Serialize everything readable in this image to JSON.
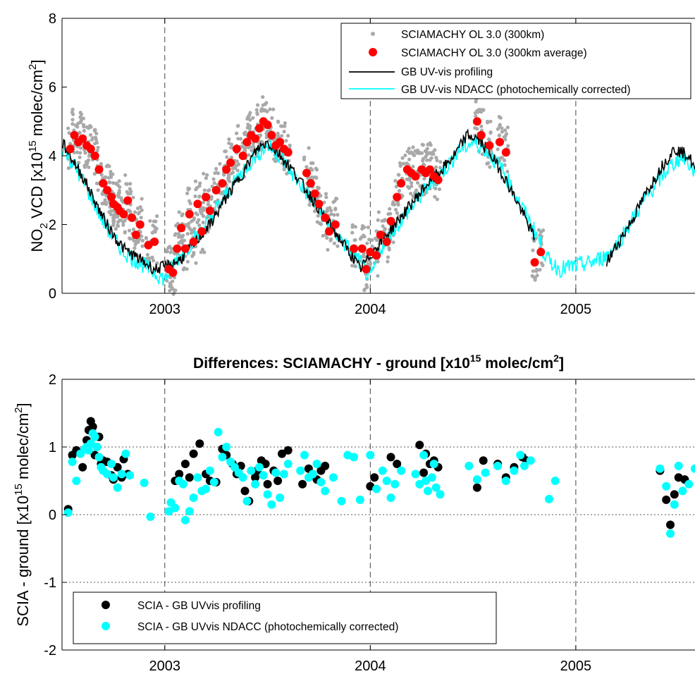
{
  "chart_data": [
    {
      "type": "scatter",
      "title": "",
      "ylabel": "NO2 VCD [x10^15 molec/cm^2]",
      "ylabel_parts": {
        "a": "NO",
        "b": "2",
        "c": " VCD [x10",
        "d": "15",
        "e": " molec/cm",
        "f": "2",
        "g": "]"
      },
      "xlim": [
        2002.5,
        2005.58
      ],
      "ylim": [
        0,
        8
      ],
      "yticks": [
        0,
        2,
        4,
        6,
        8
      ],
      "xticks": [
        2003,
        2004,
        2005
      ],
      "xtick_labels": [
        "2003",
        "2004",
        "2005"
      ],
      "legend_position": "top-right",
      "legend": [
        {
          "label": "SCIAMACHY OL 3.0 (300km)",
          "color": "#a9a9a9",
          "marker": "dot"
        },
        {
          "label": "SCIAMACHY OL 3.0 (300km average)",
          "color": "#ff0000",
          "marker": "circle"
        },
        {
          "label": "GB UV-vis profiling",
          "color": "#000000",
          "marker": "line"
        },
        {
          "label": "GB UV-vis NDACC (photochemically corrected)",
          "color": "#00ffff",
          "marker": "line"
        }
      ],
      "series_avg": {
        "x": [
          2002.54,
          2002.56,
          2002.58,
          2002.6,
          2002.62,
          2002.64,
          2002.66,
          2002.68,
          2002.7,
          2002.72,
          2002.74,
          2002.75,
          2002.77,
          2002.78,
          2002.8,
          2002.82,
          2002.84,
          2002.86,
          2002.88,
          2002.92,
          2002.95,
          2003.02,
          2003.04,
          2003.06,
          2003.08,
          2003.1,
          2003.12,
          2003.14,
          2003.16,
          2003.18,
          2003.2,
          2003.22,
          2003.25,
          2003.28,
          2003.3,
          2003.32,
          2003.35,
          2003.38,
          2003.4,
          2003.42,
          2003.44,
          2003.46,
          2003.48,
          2003.5,
          2003.52,
          2003.54,
          2003.56,
          2003.58,
          2003.6,
          2003.69,
          2003.71,
          2003.73,
          2003.75,
          2003.78,
          2003.8,
          2003.83,
          2003.92,
          2003.96,
          2003.98,
          2004.0,
          2004.03,
          2004.05,
          2004.08,
          2004.1,
          2004.13,
          2004.15,
          2004.18,
          2004.2,
          2004.22,
          2004.25,
          2004.27,
          2004.29,
          2004.31,
          2004.33,
          2004.52,
          2004.54,
          2004.58,
          2004.63,
          2004.66,
          2004.8,
          2004.83
        ],
        "y": [
          4.2,
          4.6,
          4.4,
          4.5,
          4.3,
          4.2,
          4.0,
          3.6,
          3.2,
          3.0,
          2.8,
          2.6,
          2.5,
          2.4,
          2.3,
          2.7,
          2.2,
          1.7,
          2.0,
          1.4,
          1.5,
          0.7,
          0.6,
          1.3,
          1.9,
          1.3,
          2.3,
          1.5,
          2.6,
          1.8,
          2.8,
          2.4,
          3.0,
          3.2,
          3.6,
          3.8,
          4.2,
          4.0,
          4.4,
          4.6,
          4.5,
          4.8,
          5.0,
          4.9,
          4.6,
          4.3,
          4.4,
          4.2,
          4.1,
          3.5,
          3.2,
          2.9,
          2.6,
          2.2,
          1.8,
          2.0,
          1.3,
          1.3,
          0.7,
          1.2,
          1.1,
          1.7,
          1.5,
          2.1,
          2.8,
          3.2,
          3.6,
          3.5,
          3.4,
          3.6,
          3.5,
          3.6,
          3.4,
          3.3,
          5.0,
          4.6,
          4.3,
          4.4,
          4.1,
          0.9,
          1.2
        ]
      },
      "series_gray_note": "dense individual overpasses around the averages",
      "line_profiling": {
        "x": [
          2002.5,
          2002.55,
          2002.6,
          2002.65,
          2002.7,
          2002.75,
          2002.8,
          2002.85,
          2002.9,
          2002.95,
          2003.02,
          2003.08,
          2003.15,
          2003.22,
          2003.3,
          2003.38,
          2003.45,
          2003.5,
          2003.55,
          2003.62,
          2003.7,
          2003.78,
          2003.85,
          2003.92,
          2003.95,
          2004.05,
          2004.12,
          2004.2,
          2004.28,
          2004.35,
          2004.42,
          2004.47,
          2004.52,
          2004.58,
          2004.65,
          2004.72,
          2004.8,
          2005.15,
          2005.2,
          2005.28,
          2005.35,
          2005.42,
          2005.48,
          2005.55,
          2005.58
        ],
        "y": [
          4.4,
          3.9,
          3.4,
          2.8,
          2.2,
          1.7,
          1.3,
          1.1,
          0.9,
          0.7,
          0.8,
          1.0,
          1.5,
          2.0,
          2.8,
          3.5,
          4.2,
          4.4,
          4.1,
          3.6,
          2.9,
          2.2,
          1.6,
          1.0,
          0.7,
          1.5,
          2.0,
          2.6,
          3.2,
          3.6,
          4.1,
          4.6,
          4.5,
          4.1,
          3.4,
          2.6,
          1.6,
          0.9,
          1.4,
          2.2,
          3.0,
          3.7,
          4.2,
          4.0,
          3.6
        ]
      },
      "line_ndacc": {
        "x": [
          2002.5,
          2002.55,
          2002.6,
          2002.65,
          2002.7,
          2002.75,
          2002.8,
          2002.85,
          2002.9,
          2002.95,
          2003.0,
          2003.05,
          2003.12,
          2003.2,
          2003.28,
          2003.36,
          2003.44,
          2003.5,
          2003.56,
          2003.63,
          2003.72,
          2003.8,
          2003.88,
          2003.95,
          2004.0,
          2004.05,
          2004.12,
          2004.2,
          2004.28,
          2004.36,
          2004.44,
          2004.5,
          2004.56,
          2004.64,
          2004.72,
          2004.8,
          2004.86,
          2004.92,
          2005.0,
          2005.08,
          2005.15,
          2005.22,
          2005.3,
          2005.38,
          2005.46,
          2005.52,
          2005.58
        ],
        "y": [
          4.3,
          3.8,
          3.3,
          2.7,
          2.1,
          1.6,
          1.2,
          1.0,
          0.8,
          0.6,
          0.4,
          0.9,
          1.4,
          2.0,
          2.7,
          3.4,
          4.0,
          4.3,
          4.0,
          3.4,
          2.7,
          2.0,
          1.4,
          0.9,
          0.4,
          1.3,
          1.9,
          2.5,
          3.1,
          3.6,
          4.2,
          4.4,
          4.2,
          3.6,
          2.7,
          1.8,
          1.0,
          0.7,
          0.8,
          0.9,
          1.1,
          1.6,
          2.4,
          3.1,
          3.7,
          4.0,
          3.5
        ]
      }
    },
    {
      "type": "scatter",
      "title_parts": {
        "a": "Differences: SCIAMACHY - ground [x10",
        "b": "15",
        "c": " molec/cm",
        "d": "2",
        "e": "]"
      },
      "ylabel_parts": {
        "a": "SCIA - ground [x10",
        "b": "15",
        "c": " molec/cm",
        "d": "2",
        "e": "]"
      },
      "xlim": [
        2002.5,
        2005.58
      ],
      "ylim": [
        -2,
        2
      ],
      "yticks": [
        -2,
        -1,
        0,
        1,
        2
      ],
      "xticks": [
        2003,
        2004,
        2005
      ],
      "xtick_labels": [
        "2003",
        "2004",
        "2005"
      ],
      "legend_position": "bottom-left",
      "legend": [
        {
          "label": "SCIA - GB UVvis profiling",
          "color": "#000000"
        },
        {
          "label": "SCIA - GB UVvis NDACC (photochemically corrected)",
          "color": "#00ffff"
        }
      ],
      "series": [
        {
          "x": [
            2002.53,
            2002.55,
            2002.57,
            2002.6,
            2002.62,
            2002.63,
            2002.64,
            2002.65,
            2002.66,
            2002.67,
            2002.68,
            2002.69,
            2002.7,
            2002.72,
            2002.74,
            2002.75,
            2002.77,
            2002.79,
            2002.8,
            2002.82,
            2003.05,
            2003.07,
            2003.1,
            2003.12,
            2003.14,
            2003.17,
            2003.2,
            2003.22,
            2003.25,
            2003.28,
            2003.3,
            2003.33,
            2003.35,
            2003.37,
            2003.39,
            2003.41,
            2003.44,
            2003.45,
            2003.47,
            2003.49,
            2003.5,
            2003.53,
            2003.55,
            2003.57,
            2003.6,
            2003.67,
            2003.7,
            2003.72,
            2003.74,
            2003.76,
            2003.78,
            2004.0,
            2004.02,
            2004.1,
            2004.13,
            2004.24,
            2004.26,
            2004.27,
            2004.29,
            2004.31,
            2004.33,
            2004.52,
            2004.55,
            2004.62,
            2004.66,
            2004.7,
            2004.74,
            2004.76,
            2005.41,
            2005.44,
            2005.46,
            2005.48,
            2005.5,
            2005.53
          ],
          "y": [
            0.08,
            0.88,
            0.95,
            0.7,
            1.1,
            1.25,
            1.38,
            1.3,
            0.88,
            1.0,
            1.15,
            0.75,
            0.8,
            0.78,
            0.58,
            0.52,
            0.7,
            0.55,
            0.82,
            0.6,
            0.5,
            0.6,
            0.75,
            0.55,
            0.9,
            1.05,
            0.6,
            0.5,
            0.48,
            0.97,
            0.88,
            0.75,
            0.6,
            0.72,
            0.35,
            0.2,
            0.55,
            0.65,
            0.8,
            0.75,
            0.45,
            0.65,
            0.5,
            0.9,
            0.95,
            0.45,
            0.68,
            0.6,
            0.52,
            0.65,
            0.72,
            0.42,
            0.55,
            0.85,
            0.75,
            1.03,
            0.62,
            0.9,
            0.75,
            0.8,
            0.7,
            0.4,
            0.8,
            0.75,
            0.55,
            0.7,
            0.85,
            0.8,
            0.65,
            0.22,
            -0.15,
            0.3,
            0.55,
            0.52
          ]
        },
        {
          "x": [
            2002.53,
            2002.55,
            2002.57,
            2002.59,
            2002.61,
            2002.62,
            2002.63,
            2002.64,
            2002.65,
            2002.66,
            2002.67,
            2002.68,
            2002.69,
            2002.7,
            2002.72,
            2002.74,
            2002.75,
            2002.77,
            2002.79,
            2002.81,
            2002.83,
            2002.9,
            2002.93,
            2003.02,
            2003.03,
            2003.05,
            2003.07,
            2003.09,
            2003.1,
            2003.12,
            2003.14,
            2003.16,
            2003.18,
            2003.2,
            2003.22,
            2003.24,
            2003.26,
            2003.28,
            2003.3,
            2003.32,
            2003.34,
            2003.36,
            2003.38,
            2003.4,
            2003.42,
            2003.44,
            2003.46,
            2003.48,
            2003.5,
            2003.52,
            2003.54,
            2003.56,
            2003.58,
            2003.6,
            2003.66,
            2003.68,
            2003.7,
            2003.72,
            2003.74,
            2003.76,
            2003.78,
            2003.82,
            2003.86,
            2003.89,
            2003.92,
            2003.95,
            2004.0,
            2004.03,
            2004.06,
            2004.08,
            2004.1,
            2004.12,
            2004.15,
            2004.22,
            2004.24,
            2004.26,
            2004.27,
            2004.28,
            2004.3,
            2004.31,
            2004.32,
            2004.34,
            2004.48,
            2004.52,
            2004.56,
            2004.62,
            2004.66,
            2004.7,
            2004.73,
            2004.75,
            2004.78,
            2004.87,
            2004.9,
            2005.41,
            2005.44,
            2005.46,
            2005.48,
            2005.5,
            2005.52,
            2005.55,
            2005.58
          ],
          "y": [
            0.03,
            0.78,
            0.5,
            0.9,
            0.97,
            1.0,
            0.95,
            1.05,
            1.2,
            1.15,
            1.0,
            0.85,
            0.7,
            0.65,
            0.6,
            0.75,
            0.55,
            0.4,
            0.6,
            0.9,
            0.58,
            0.47,
            -0.03,
            0.05,
            0.18,
            0.1,
            0.5,
            0.45,
            -0.08,
            0.05,
            0.25,
            0.55,
            0.35,
            0.38,
            0.65,
            0.48,
            1.22,
            0.85,
            1.0,
            0.78,
            0.7,
            0.62,
            0.55,
            0.2,
            0.65,
            0.45,
            0.7,
            0.58,
            0.3,
            0.15,
            0.62,
            0.25,
            0.6,
            0.75,
            0.65,
            0.88,
            0.55,
            0.6,
            0.75,
            0.48,
            0.35,
            0.55,
            0.2,
            0.88,
            0.85,
            0.22,
            0.88,
            0.38,
            0.65,
            0.5,
            0.25,
            0.45,
            0.65,
            0.6,
            0.45,
            0.88,
            0.5,
            0.35,
            0.55,
            0.75,
            0.4,
            0.3,
            0.72,
            0.52,
            0.62,
            0.72,
            0.5,
            0.65,
            0.88,
            0.72,
            0.8,
            0.23,
            0.5,
            0.68,
            0.42,
            -0.28,
            0.15,
            0.72,
            0.35,
            0.45,
            0.68
          ]
        }
      ]
    }
  ]
}
